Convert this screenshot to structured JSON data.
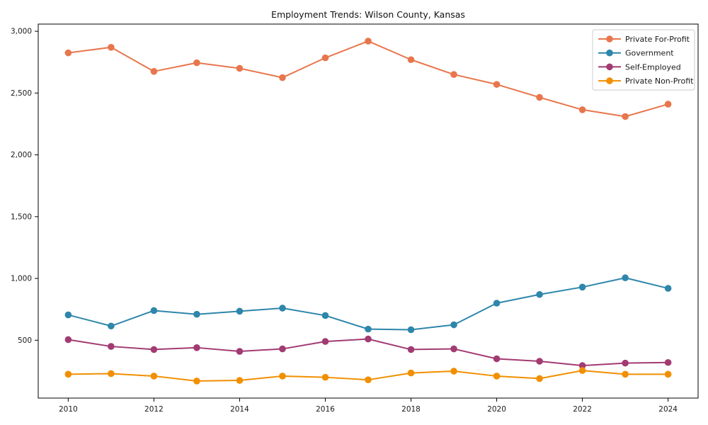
{
  "chart_data": {
    "type": "line",
    "title": "Employment Trends: Wilson County, Kansas",
    "xlabel": "",
    "ylabel": "",
    "x": [
      2010,
      2011,
      2012,
      2013,
      2014,
      2015,
      2016,
      2017,
      2018,
      2019,
      2020,
      2021,
      2022,
      2023,
      2024
    ],
    "series": [
      {
        "name": "Private For-Profit",
        "color": "#e8764c",
        "values": [
          2825,
          2870,
          2675,
          2745,
          2700,
          2625,
          2785,
          2920,
          2770,
          2650,
          2570,
          2465,
          2365,
          2310,
          2410
        ]
      },
      {
        "name": "Government",
        "color": "#2e86ab",
        "values": [
          705,
          615,
          740,
          710,
          735,
          760,
          700,
          590,
          585,
          625,
          800,
          870,
          930,
          1005,
          920
        ]
      },
      {
        "name": "Self-Employed",
        "color": "#a23b72",
        "values": [
          505,
          450,
          425,
          440,
          410,
          430,
          490,
          510,
          425,
          430,
          350,
          330,
          295,
          315,
          320
        ]
      },
      {
        "name": "Private Non-Profit",
        "color": "#f18f01",
        "values": [
          225,
          230,
          210,
          170,
          175,
          210,
          200,
          180,
          235,
          250,
          210,
          190,
          255,
          225,
          225
        ]
      }
    ],
    "xticks": [
      2010,
      2012,
      2014,
      2016,
      2018,
      2020,
      2022,
      2024
    ],
    "yticks": [
      500,
      1000,
      1500,
      2000,
      2500,
      3000
    ],
    "xlim": [
      2009.3,
      2024.7
    ],
    "ylim": [
      32,
      3058
    ],
    "grid": false,
    "legend_position": "upper right",
    "axis_color": "#000000",
    "tick_label_color": "#1a1a1a",
    "legend_border_color": "#cccccc",
    "background_color": "#ffffff"
  }
}
